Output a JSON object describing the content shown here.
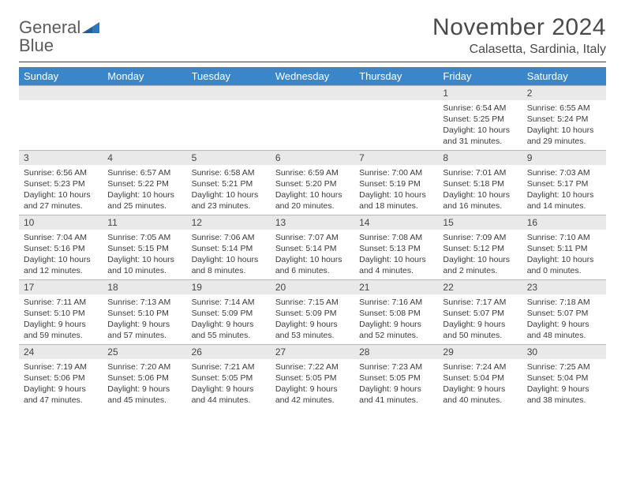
{
  "logo": {
    "text1": "General",
    "text2": "Blue",
    "tri_color": "#2f77bb"
  },
  "title": "November 2024",
  "location": "Calasetta, Sardinia, Italy",
  "header_bg": "#3a86c8",
  "daybar_bg": "#e9e9e9",
  "days": [
    "Sunday",
    "Monday",
    "Tuesday",
    "Wednesday",
    "Thursday",
    "Friday",
    "Saturday"
  ],
  "weeks": [
    [
      {
        "n": "",
        "sr": "",
        "ss": "",
        "dl1": "",
        "dl2": ""
      },
      {
        "n": "",
        "sr": "",
        "ss": "",
        "dl1": "",
        "dl2": ""
      },
      {
        "n": "",
        "sr": "",
        "ss": "",
        "dl1": "",
        "dl2": ""
      },
      {
        "n": "",
        "sr": "",
        "ss": "",
        "dl1": "",
        "dl2": ""
      },
      {
        "n": "",
        "sr": "",
        "ss": "",
        "dl1": "",
        "dl2": ""
      },
      {
        "n": "1",
        "sr": "Sunrise: 6:54 AM",
        "ss": "Sunset: 5:25 PM",
        "dl1": "Daylight: 10 hours",
        "dl2": "and 31 minutes."
      },
      {
        "n": "2",
        "sr": "Sunrise: 6:55 AM",
        "ss": "Sunset: 5:24 PM",
        "dl1": "Daylight: 10 hours",
        "dl2": "and 29 minutes."
      }
    ],
    [
      {
        "n": "3",
        "sr": "Sunrise: 6:56 AM",
        "ss": "Sunset: 5:23 PM",
        "dl1": "Daylight: 10 hours",
        "dl2": "and 27 minutes."
      },
      {
        "n": "4",
        "sr": "Sunrise: 6:57 AM",
        "ss": "Sunset: 5:22 PM",
        "dl1": "Daylight: 10 hours",
        "dl2": "and 25 minutes."
      },
      {
        "n": "5",
        "sr": "Sunrise: 6:58 AM",
        "ss": "Sunset: 5:21 PM",
        "dl1": "Daylight: 10 hours",
        "dl2": "and 23 minutes."
      },
      {
        "n": "6",
        "sr": "Sunrise: 6:59 AM",
        "ss": "Sunset: 5:20 PM",
        "dl1": "Daylight: 10 hours",
        "dl2": "and 20 minutes."
      },
      {
        "n": "7",
        "sr": "Sunrise: 7:00 AM",
        "ss": "Sunset: 5:19 PM",
        "dl1": "Daylight: 10 hours",
        "dl2": "and 18 minutes."
      },
      {
        "n": "8",
        "sr": "Sunrise: 7:01 AM",
        "ss": "Sunset: 5:18 PM",
        "dl1": "Daylight: 10 hours",
        "dl2": "and 16 minutes."
      },
      {
        "n": "9",
        "sr": "Sunrise: 7:03 AM",
        "ss": "Sunset: 5:17 PM",
        "dl1": "Daylight: 10 hours",
        "dl2": "and 14 minutes."
      }
    ],
    [
      {
        "n": "10",
        "sr": "Sunrise: 7:04 AM",
        "ss": "Sunset: 5:16 PM",
        "dl1": "Daylight: 10 hours",
        "dl2": "and 12 minutes."
      },
      {
        "n": "11",
        "sr": "Sunrise: 7:05 AM",
        "ss": "Sunset: 5:15 PM",
        "dl1": "Daylight: 10 hours",
        "dl2": "and 10 minutes."
      },
      {
        "n": "12",
        "sr": "Sunrise: 7:06 AM",
        "ss": "Sunset: 5:14 PM",
        "dl1": "Daylight: 10 hours",
        "dl2": "and 8 minutes."
      },
      {
        "n": "13",
        "sr": "Sunrise: 7:07 AM",
        "ss": "Sunset: 5:14 PM",
        "dl1": "Daylight: 10 hours",
        "dl2": "and 6 minutes."
      },
      {
        "n": "14",
        "sr": "Sunrise: 7:08 AM",
        "ss": "Sunset: 5:13 PM",
        "dl1": "Daylight: 10 hours",
        "dl2": "and 4 minutes."
      },
      {
        "n": "15",
        "sr": "Sunrise: 7:09 AM",
        "ss": "Sunset: 5:12 PM",
        "dl1": "Daylight: 10 hours",
        "dl2": "and 2 minutes."
      },
      {
        "n": "16",
        "sr": "Sunrise: 7:10 AM",
        "ss": "Sunset: 5:11 PM",
        "dl1": "Daylight: 10 hours",
        "dl2": "and 0 minutes."
      }
    ],
    [
      {
        "n": "17",
        "sr": "Sunrise: 7:11 AM",
        "ss": "Sunset: 5:10 PM",
        "dl1": "Daylight: 9 hours",
        "dl2": "and 59 minutes."
      },
      {
        "n": "18",
        "sr": "Sunrise: 7:13 AM",
        "ss": "Sunset: 5:10 PM",
        "dl1": "Daylight: 9 hours",
        "dl2": "and 57 minutes."
      },
      {
        "n": "19",
        "sr": "Sunrise: 7:14 AM",
        "ss": "Sunset: 5:09 PM",
        "dl1": "Daylight: 9 hours",
        "dl2": "and 55 minutes."
      },
      {
        "n": "20",
        "sr": "Sunrise: 7:15 AM",
        "ss": "Sunset: 5:09 PM",
        "dl1": "Daylight: 9 hours",
        "dl2": "and 53 minutes."
      },
      {
        "n": "21",
        "sr": "Sunrise: 7:16 AM",
        "ss": "Sunset: 5:08 PM",
        "dl1": "Daylight: 9 hours",
        "dl2": "and 52 minutes."
      },
      {
        "n": "22",
        "sr": "Sunrise: 7:17 AM",
        "ss": "Sunset: 5:07 PM",
        "dl1": "Daylight: 9 hours",
        "dl2": "and 50 minutes."
      },
      {
        "n": "23",
        "sr": "Sunrise: 7:18 AM",
        "ss": "Sunset: 5:07 PM",
        "dl1": "Daylight: 9 hours",
        "dl2": "and 48 minutes."
      }
    ],
    [
      {
        "n": "24",
        "sr": "Sunrise: 7:19 AM",
        "ss": "Sunset: 5:06 PM",
        "dl1": "Daylight: 9 hours",
        "dl2": "and 47 minutes."
      },
      {
        "n": "25",
        "sr": "Sunrise: 7:20 AM",
        "ss": "Sunset: 5:06 PM",
        "dl1": "Daylight: 9 hours",
        "dl2": "and 45 minutes."
      },
      {
        "n": "26",
        "sr": "Sunrise: 7:21 AM",
        "ss": "Sunset: 5:05 PM",
        "dl1": "Daylight: 9 hours",
        "dl2": "and 44 minutes."
      },
      {
        "n": "27",
        "sr": "Sunrise: 7:22 AM",
        "ss": "Sunset: 5:05 PM",
        "dl1": "Daylight: 9 hours",
        "dl2": "and 42 minutes."
      },
      {
        "n": "28",
        "sr": "Sunrise: 7:23 AM",
        "ss": "Sunset: 5:05 PM",
        "dl1": "Daylight: 9 hours",
        "dl2": "and 41 minutes."
      },
      {
        "n": "29",
        "sr": "Sunrise: 7:24 AM",
        "ss": "Sunset: 5:04 PM",
        "dl1": "Daylight: 9 hours",
        "dl2": "and 40 minutes."
      },
      {
        "n": "30",
        "sr": "Sunrise: 7:25 AM",
        "ss": "Sunset: 5:04 PM",
        "dl1": "Daylight: 9 hours",
        "dl2": "and 38 minutes."
      }
    ]
  ]
}
